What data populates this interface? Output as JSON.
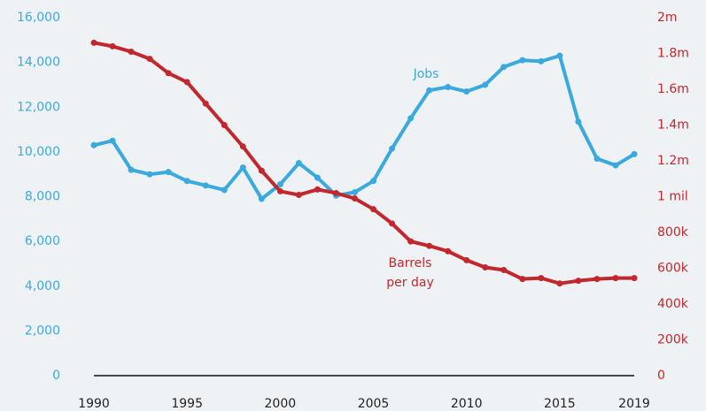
{
  "chart_data": {
    "type": "line",
    "x": [
      1990,
      1991,
      1992,
      1993,
      1994,
      1995,
      1996,
      1997,
      1998,
      1999,
      2000,
      2001,
      2002,
      2003,
      2004,
      2005,
      2006,
      2007,
      2008,
      2009,
      2010,
      2011,
      2012,
      2013,
      2014,
      2015,
      2016,
      2017,
      2018,
      2019
    ],
    "xlim": [
      1990,
      2019
    ],
    "xticks": [
      1990,
      1995,
      2000,
      2005,
      2010,
      2015,
      2019
    ],
    "ylim": [
      0,
      16000
    ],
    "yticks": [
      0,
      {
        "value": 2000,
        "label": "2,000"
      },
      {
        "value": 4000,
        "label": "4,000"
      },
      {
        "value": 6000,
        "label": "6,000"
      },
      {
        "value": 8000,
        "label": "8,000"
      },
      {
        "value": 10000,
        "label": "10,000"
      },
      {
        "value": 12000,
        "label": "12,000"
      },
      {
        "value": 14000,
        "label": "14,000"
      },
      {
        "value": 16000,
        "label": "16,000"
      }
    ],
    "y2lim": [
      0,
      2000000
    ],
    "y2ticks": [
      0,
      {
        "value": 200000,
        "label": "200k"
      },
      {
        "value": 400000,
        "label": "400k"
      },
      {
        "value": 600000,
        "label": "600k"
      },
      {
        "value": 800000,
        "label": "800k"
      },
      {
        "value": 1000000,
        "label": "1 mil"
      },
      {
        "value": 1200000,
        "label": "1.2m"
      },
      {
        "value": 1400000,
        "label": "1.4m"
      },
      {
        "value": 1600000,
        "label": "1.6m"
      },
      {
        "value": 1800000,
        "label": "1.8m"
      },
      {
        "value": 2000000,
        "label": "2m"
      }
    ],
    "series": [
      {
        "name": "Jobs",
        "color": "#3aa9dd",
        "axis": "y",
        "values": [
          10300,
          10500,
          9200,
          9000,
          9100,
          8700,
          8500,
          8300,
          9300,
          7900,
          8550,
          9500,
          8850,
          8050,
          8200,
          8700,
          10150,
          11500,
          12750,
          12900,
          12700,
          13000,
          13800,
          14100,
          14050,
          14300,
          11350,
          9700,
          9400,
          9900
        ]
      },
      {
        "name": "Barrels per day",
        "color": "#c1272d",
        "axis": "y2",
        "values": [
          1860000,
          1840000,
          1810000,
          1770000,
          1690000,
          1640000,
          1520000,
          1400000,
          1280000,
          1145000,
          1030000,
          1010000,
          1040000,
          1020000,
          990000,
          930000,
          850000,
          750000,
          725000,
          695000,
          645000,
          605000,
          590000,
          540000,
          545000,
          515000,
          530000,
          540000,
          545000,
          545000
        ]
      }
    ],
    "annotations": [
      {
        "lines": [
          "Jobs"
        ]
      },
      {
        "lines": [
          "Barrels",
          "per day"
        ]
      }
    ]
  }
}
